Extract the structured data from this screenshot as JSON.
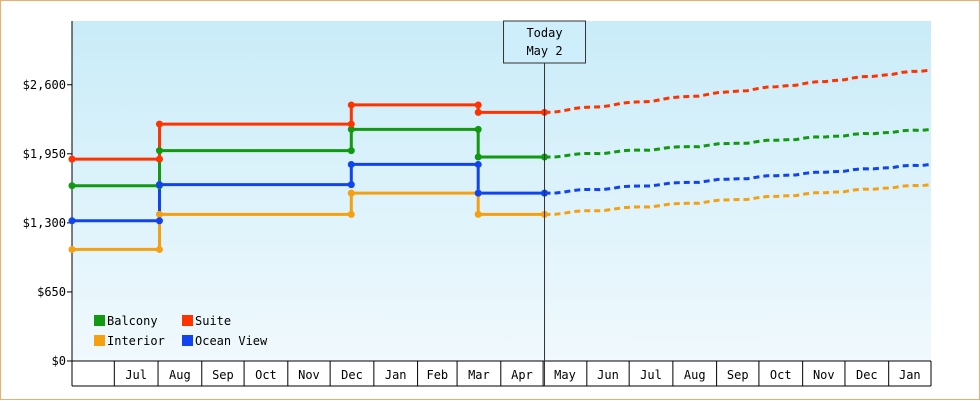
{
  "chart_data": {
    "type": "line",
    "title": "",
    "xlabel": "",
    "ylabel": "",
    "ylim": [
      0,
      3200
    ],
    "yticks": [
      0,
      650,
      1300,
      1950,
      2600
    ],
    "ytick_labels": [
      "$0",
      "$650",
      "$1,300",
      "$1,950",
      "$2,600"
    ],
    "x_start": "2024-06-01",
    "x_end": "2026-01-31",
    "month_ticks": [
      {
        "label": "Jul",
        "date": "2024-07-01"
      },
      {
        "label": "Aug",
        "date": "2024-08-01"
      },
      {
        "label": "Sep",
        "date": "2024-09-01"
      },
      {
        "label": "Oct",
        "date": "2024-10-01"
      },
      {
        "label": "Nov",
        "date": "2024-11-01"
      },
      {
        "label": "Dec",
        "date": "2024-12-01"
      },
      {
        "label": "Jan",
        "date": "2025-01-01"
      },
      {
        "label": "Feb",
        "date": "2025-02-01"
      },
      {
        "label": "Mar",
        "date": "2025-03-01"
      },
      {
        "label": "Apr",
        "date": "2025-04-01"
      },
      {
        "label": "May",
        "date": "2025-05-01"
      },
      {
        "label": "Jun",
        "date": "2025-06-01"
      },
      {
        "label": "Jul",
        "date": "2025-07-01"
      },
      {
        "label": "Aug",
        "date": "2025-08-01"
      },
      {
        "label": "Sep",
        "date": "2025-09-01"
      },
      {
        "label": "Oct",
        "date": "2025-10-01"
      },
      {
        "label": "Nov",
        "date": "2025-11-01"
      },
      {
        "label": "Dec",
        "date": "2025-12-01"
      },
      {
        "label": "Jan",
        "date": "2026-01-01"
      }
    ],
    "today": {
      "label_line1": "Today",
      "label_line2": "May 2",
      "date": "2025-05-02"
    },
    "legend": {
      "placement": "bottom-left",
      "columns": 2
    },
    "series": [
      {
        "name": "Balcony",
        "color": "#119911",
        "points": [
          {
            "date": "2024-06-01",
            "value": 1650
          },
          {
            "date": "2024-08-02",
            "value": 1650
          },
          {
            "date": "2024-08-02",
            "value": 1980
          },
          {
            "date": "2024-12-16",
            "value": 1980
          },
          {
            "date": "2024-12-16",
            "value": 2180
          },
          {
            "date": "2025-03-16",
            "value": 2180
          },
          {
            "date": "2025-03-16",
            "value": 1920
          },
          {
            "date": "2025-05-02",
            "value": 1920
          }
        ],
        "forecast": [
          {
            "date": "2025-05-02",
            "value": 1920
          },
          {
            "date": "2026-01-31",
            "value": 2180
          }
        ]
      },
      {
        "name": "Suite",
        "color": "#ff3300",
        "points": [
          {
            "date": "2024-06-01",
            "value": 1900
          },
          {
            "date": "2024-08-02",
            "value": 1900
          },
          {
            "date": "2024-08-02",
            "value": 2230
          },
          {
            "date": "2024-12-16",
            "value": 2230
          },
          {
            "date": "2024-12-16",
            "value": 2410
          },
          {
            "date": "2025-03-16",
            "value": 2410
          },
          {
            "date": "2025-03-16",
            "value": 2340
          },
          {
            "date": "2025-05-02",
            "value": 2340
          }
        ],
        "forecast": [
          {
            "date": "2025-05-02",
            "value": 2340
          },
          {
            "date": "2026-01-31",
            "value": 2740
          }
        ]
      },
      {
        "name": "Interior",
        "color": "#f5a011",
        "points": [
          {
            "date": "2024-06-01",
            "value": 1050
          },
          {
            "date": "2024-08-02",
            "value": 1050
          },
          {
            "date": "2024-08-02",
            "value": 1380
          },
          {
            "date": "2024-12-16",
            "value": 1380
          },
          {
            "date": "2024-12-16",
            "value": 1580
          },
          {
            "date": "2025-03-16",
            "value": 1580
          },
          {
            "date": "2025-03-16",
            "value": 1380
          },
          {
            "date": "2025-05-02",
            "value": 1380
          }
        ],
        "forecast": [
          {
            "date": "2025-05-02",
            "value": 1380
          },
          {
            "date": "2026-01-31",
            "value": 1660
          }
        ]
      },
      {
        "name": "Ocean View",
        "color": "#1144ee",
        "points": [
          {
            "date": "2024-06-01",
            "value": 1320
          },
          {
            "date": "2024-08-02",
            "value": 1320
          },
          {
            "date": "2024-08-02",
            "value": 1660
          },
          {
            "date": "2024-12-16",
            "value": 1660
          },
          {
            "date": "2024-12-16",
            "value": 1850
          },
          {
            "date": "2025-03-16",
            "value": 1850
          },
          {
            "date": "2025-03-16",
            "value": 1580
          },
          {
            "date": "2025-05-02",
            "value": 1580
          }
        ],
        "forecast": [
          {
            "date": "2025-05-02",
            "value": 1580
          },
          {
            "date": "2026-01-31",
            "value": 1850
          }
        ]
      }
    ]
  }
}
